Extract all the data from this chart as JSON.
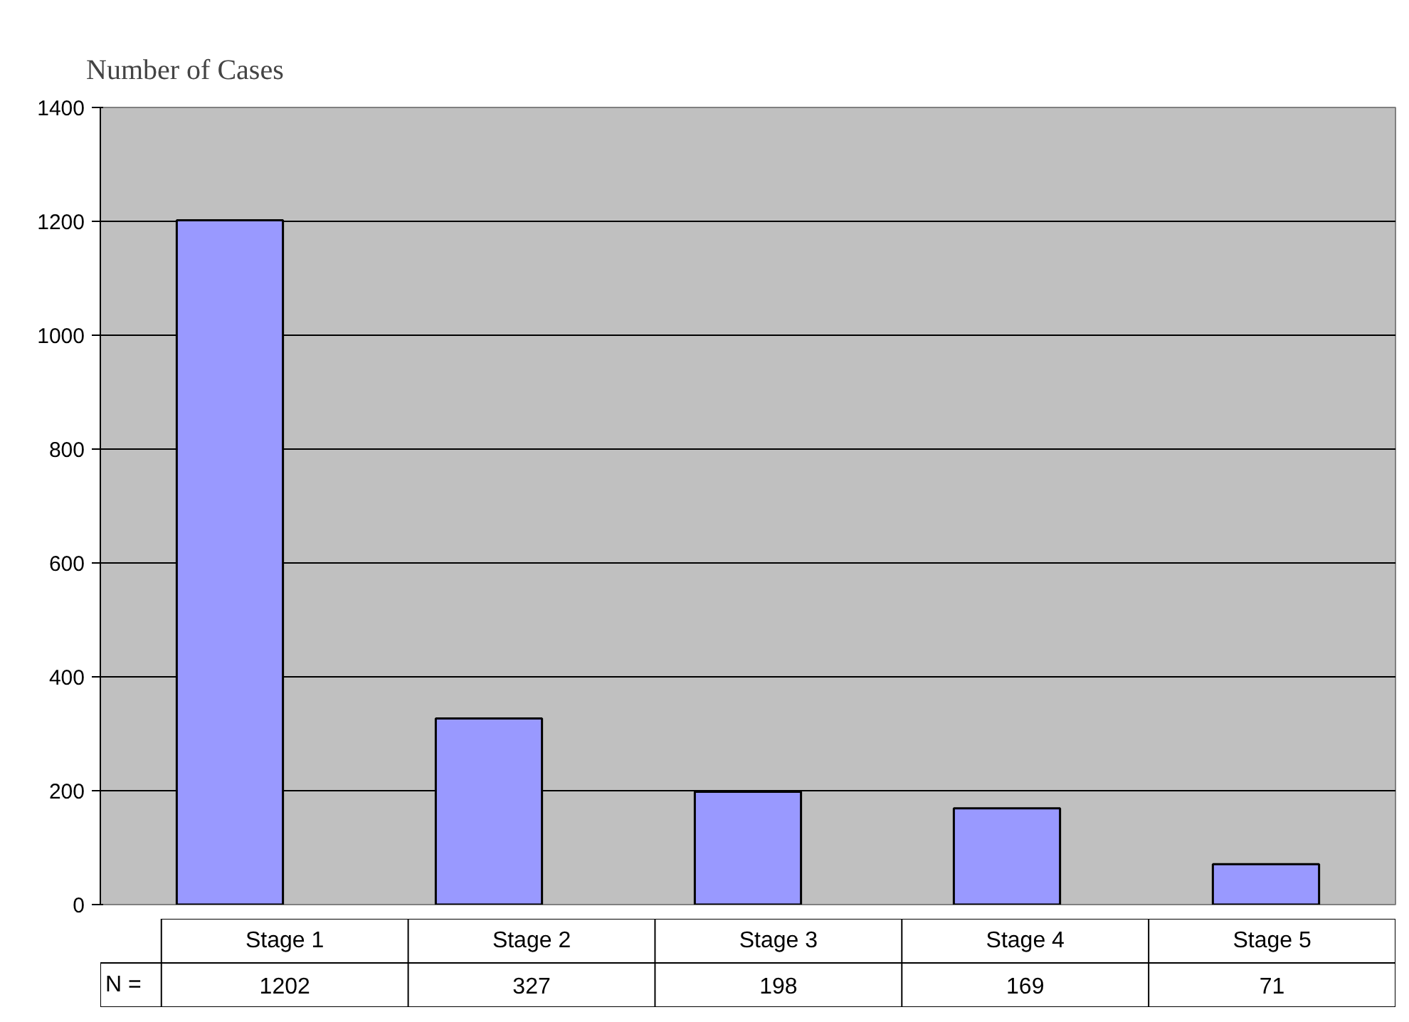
{
  "chart_data": {
    "type": "bar",
    "ylabel": "Number of Cases",
    "categories": [
      "Stage 1",
      "Stage 2",
      "Stage 3",
      "Stage 4",
      "Stage 5"
    ],
    "values": [
      1202,
      327,
      198,
      169,
      71
    ],
    "color": "#9999ff",
    "ylim": [
      0,
      1400
    ],
    "yticks": [
      0,
      200,
      400,
      600,
      800,
      1000,
      1200,
      1400
    ],
    "grid": "y",
    "data_labels": true,
    "annotations": [
      "N ="
    ]
  }
}
